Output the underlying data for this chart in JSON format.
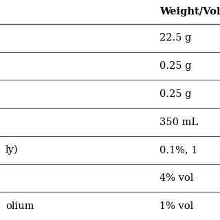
{
  "col_header": "Weight/Volume",
  "col_header_display": "Weigh",
  "rows": [
    {
      "left_text": "",
      "right_text": "22.5 g"
    },
    {
      "left_text": "",
      "right_text": "0.25 g"
    },
    {
      "left_text": "",
      "right_text": "0.25 g"
    },
    {
      "left_text": "",
      "right_text": "350 mL"
    },
    {
      "left_text": "ly)",
      "right_text": "0.1%, 1"
    },
    {
      "left_text": "",
      "right_text": "4% vol"
    },
    {
      "left_text": "olium",
      "right_text": "1% vol"
    }
  ],
  "background_color": "#ffffff",
  "text_color": "#000000",
  "line_color": "#555555",
  "header_fontsize": 10.5,
  "cell_fontsize": 10.5,
  "fig_width": 3.2,
  "fig_height": 3.2,
  "dpi": 100
}
